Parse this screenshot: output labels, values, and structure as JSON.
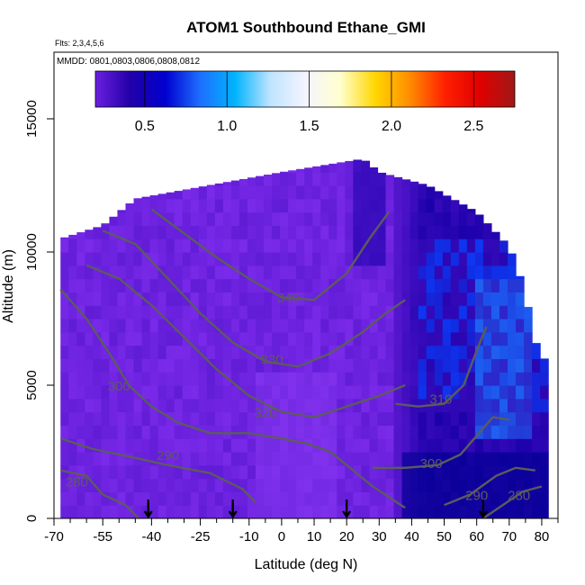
{
  "chart_data": {
    "type": "heatmap",
    "title": "ATOM1 Southbound Ethane_GMI",
    "subtitle_flights": "Flts: 2,3,4,5,6",
    "subtitle_dates": "MMDD: 0801,0803,0806,0808,0812",
    "xlabel": "Latitude (deg N)",
    "ylabel": "Altitude (m)",
    "xlim": [
      -70,
      85
    ],
    "ylim": [
      0,
      17500
    ],
    "x_ticks": [
      -70,
      -55,
      -40,
      -25,
      -10,
      0,
      10,
      20,
      30,
      40,
      50,
      60,
      70,
      80
    ],
    "x_tick_labels": [
      "-70",
      "-55",
      "-40",
      "-25",
      "-10",
      "0",
      "10",
      "20",
      "30",
      "40",
      "50",
      "60",
      "70",
      "80"
    ],
    "y_ticks": [
      0,
      5000,
      10000,
      15000
    ],
    "y_tick_labels": [
      "0",
      "5000",
      "10000",
      "15000"
    ],
    "colorbar": {
      "range": [
        0.2,
        2.75
      ],
      "ticks": [
        0.5,
        1.0,
        1.5,
        2.0,
        2.5
      ],
      "tick_labels": [
        "0.5",
        "1.0",
        "1.5",
        "2.0",
        "2.5"
      ],
      "colors": [
        "#6a1fe0",
        "#2200a8",
        "#0000d0",
        "#1e6fff",
        "#00b4ff",
        "#bfe4ff",
        "#f4f4ff",
        "#ffffd0",
        "#ffd700",
        "#ff8c00",
        "#ff2000",
        "#e00000",
        "#a01818"
      ]
    },
    "column_tops": [
      {
        "lat": -68,
        "alt": 10500
      },
      {
        "lat": -55,
        "alt": 11000
      },
      {
        "lat": -45,
        "alt": 12000
      },
      {
        "lat": -27,
        "alt": 12400
      },
      {
        "lat": 0,
        "alt": 13000
      },
      {
        "lat": 25,
        "alt": 13500
      },
      {
        "lat": 30,
        "alt": 13000
      },
      {
        "lat": 45,
        "alt": 12500
      },
      {
        "lat": 60,
        "alt": 11500
      },
      {
        "lat": 70,
        "alt": 10200
      },
      {
        "lat": 75,
        "alt": 8500
      },
      {
        "lat": 77,
        "alt": 7000
      },
      {
        "lat": 80,
        "alt": 6000
      }
    ],
    "contours": [
      {
        "level": "280",
        "label_lat": -63,
        "label_alt": 1200,
        "points": [
          [
            -68,
            1800
          ],
          [
            -60,
            1600
          ],
          [
            -55,
            900
          ],
          [
            -48,
            500
          ],
          [
            -44,
            0
          ]
        ]
      },
      {
        "level": "290",
        "label_lat": -35,
        "label_alt": 2200,
        "points": [
          [
            -68,
            3000
          ],
          [
            -58,
            2600
          ],
          [
            -46,
            2300
          ],
          [
            -35,
            2000
          ],
          [
            -22,
            1700
          ],
          [
            -12,
            1100
          ],
          [
            -8,
            600
          ]
        ]
      },
      {
        "level": "300",
        "label_lat": -50,
        "label_alt": 4800,
        "points": [
          [
            -68,
            8600
          ],
          [
            -60,
            7500
          ],
          [
            -53,
            6200
          ],
          [
            -47,
            5000
          ],
          [
            -40,
            4200
          ],
          [
            -32,
            3600
          ],
          [
            -22,
            3200
          ],
          [
            -10,
            3200
          ],
          [
            0,
            3000
          ],
          [
            8,
            2800
          ],
          [
            15,
            2500
          ],
          [
            20,
            2000
          ],
          [
            28,
            1200
          ],
          [
            33,
            800
          ],
          [
            38,
            400
          ]
        ]
      },
      {
        "level": "320",
        "label_lat": -5,
        "label_alt": 3800,
        "points": [
          [
            -60,
            9500
          ],
          [
            -50,
            9000
          ],
          [
            -40,
            8000
          ],
          [
            -30,
            6800
          ],
          [
            -20,
            5600
          ],
          [
            -10,
            4600
          ],
          [
            0,
            4000
          ],
          [
            10,
            3800
          ],
          [
            20,
            4200
          ],
          [
            30,
            4600
          ],
          [
            38,
            5000
          ]
        ]
      },
      {
        "level": "330",
        "label_lat": -3,
        "label_alt": 5800,
        "points": [
          [
            -55,
            10800
          ],
          [
            -45,
            10300
          ],
          [
            -35,
            9000
          ],
          [
            -25,
            7700
          ],
          [
            -15,
            6600
          ],
          [
            -5,
            5900
          ],
          [
            5,
            5700
          ],
          [
            15,
            6200
          ],
          [
            25,
            7000
          ],
          [
            32,
            7700
          ],
          [
            38,
            8200
          ]
        ]
      },
      {
        "level": "340",
        "label_lat": 2,
        "label_alt": 8100,
        "points": [
          [
            -40,
            11600
          ],
          [
            -30,
            10700
          ],
          [
            -20,
            9800
          ],
          [
            -10,
            9000
          ],
          [
            0,
            8300
          ],
          [
            10,
            8200
          ],
          [
            20,
            9200
          ],
          [
            27,
            10500
          ],
          [
            33,
            11500
          ]
        ]
      },
      {
        "level": "310",
        "label_lat": 49,
        "label_alt": 4300,
        "points": [
          [
            35,
            4300
          ],
          [
            42,
            4200
          ],
          [
            50,
            4300
          ],
          [
            56,
            5000
          ],
          [
            60,
            6300
          ],
          [
            63,
            7200
          ]
        ]
      },
      {
        "level": "300",
        "label_lat": 46,
        "label_alt": 1900,
        "points": [
          [
            28,
            1900
          ],
          [
            38,
            1900
          ],
          [
            48,
            2000
          ],
          [
            55,
            2400
          ],
          [
            60,
            3100
          ],
          [
            65,
            3800
          ],
          [
            70,
            3700
          ]
        ]
      },
      {
        "level": "290",
        "label_lat": 60,
        "label_alt": 700,
        "points": [
          [
            50,
            500
          ],
          [
            58,
            900
          ],
          [
            66,
            1600
          ],
          [
            72,
            1900
          ],
          [
            78,
            1800
          ]
        ]
      },
      {
        "level": "280",
        "label_lat": 73,
        "label_alt": 700,
        "points": [
          [
            62,
            0
          ],
          [
            68,
            500
          ],
          [
            74,
            1000
          ],
          [
            80,
            1200
          ]
        ]
      }
    ],
    "arrow_lats": [
      -41,
      -15,
      20,
      62
    ],
    "field_description_lat_zones": [
      {
        "from": -68,
        "to": 35,
        "value_range": [
          0.25,
          0.4
        ]
      },
      {
        "from": 35,
        "to": 80,
        "value_range": [
          0.4,
          0.9
        ]
      }
    ]
  }
}
